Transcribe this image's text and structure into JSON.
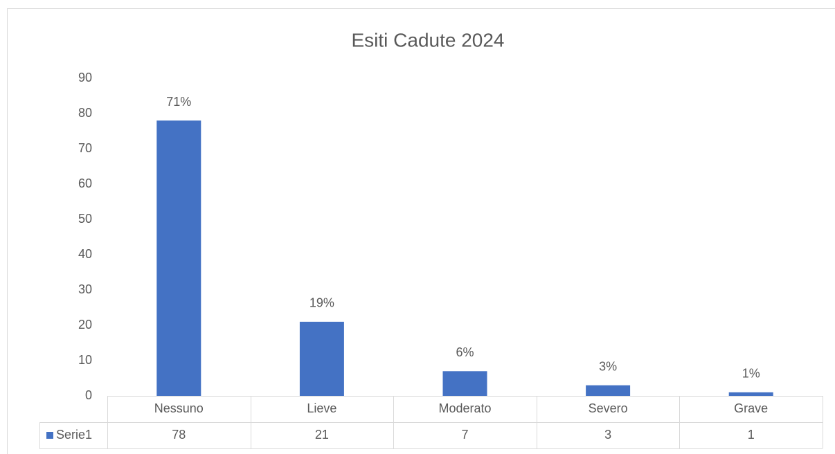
{
  "chart_data": {
    "type": "bar",
    "title": "Esiti Cadute 2024",
    "categories": [
      "Nessuno",
      "Lieve",
      "Moderato",
      "Severo",
      "Grave"
    ],
    "series": [
      {
        "name": "Serie1",
        "color": "#4472c4",
        "values": [
          78,
          21,
          7,
          3,
          1
        ]
      }
    ],
    "data_labels": [
      "71%",
      "19%",
      "6%",
      "3%",
      "1%"
    ],
    "ylim": [
      0,
      90
    ],
    "yticks": [
      0,
      10,
      20,
      30,
      40,
      50,
      60,
      70,
      80,
      90
    ],
    "grid": false,
    "data_table": true
  }
}
